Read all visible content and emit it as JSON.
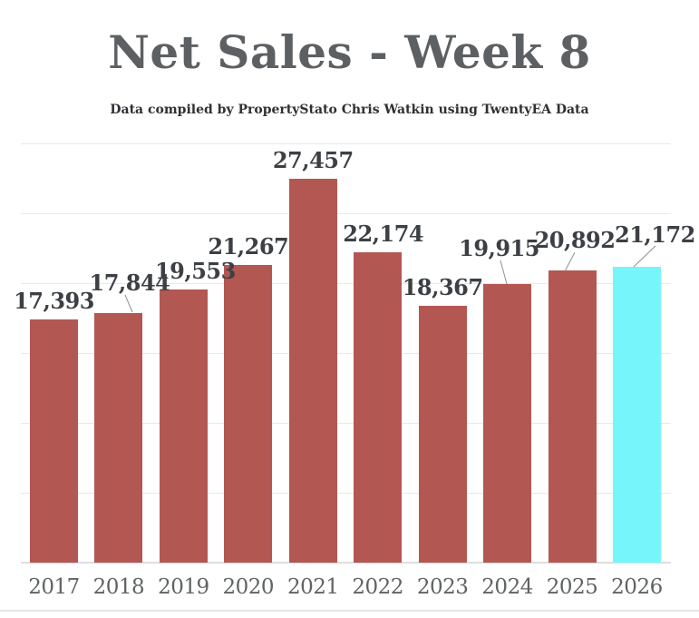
{
  "page": {
    "title": "Net Sales - Week 8",
    "subtitle": "Data compiled by PropertyStato Chris Watkin using TwentyEA Data"
  },
  "chart_data": {
    "type": "bar",
    "title": "Net Sales - Week 8",
    "subtitle": "Data compiled by PropertyStato Chris Watkin using TwentyEA Data",
    "categories": [
      "2017",
      "2018",
      "2019",
      "2020",
      "2021",
      "2022",
      "2023",
      "2024",
      "2025",
      "2026"
    ],
    "values": [
      17393,
      17844,
      19553,
      21267,
      27457,
      22174,
      18367,
      19915,
      20892,
      21172
    ],
    "value_labels": [
      "17,393",
      "17,844",
      "19,553",
      "21,267",
      "27,457",
      "22,174",
      "18,367",
      "19,915",
      "20,892",
      "21,172"
    ],
    "xlabel": "",
    "ylabel": "",
    "ylim": [
      0,
      30000
    ],
    "gridline_interval": 5000,
    "grid": true,
    "y_axis_tick_labels_visible": false,
    "legend": "none",
    "highlight_index": 9,
    "colors": {
      "bar_default": "#b35752",
      "bar_highlight": "#76f6fb",
      "title": "#5d6063",
      "subtitle": "#2e3134",
      "value_label": "#3c4044",
      "axis_label": "#606365",
      "gridline": "#e9e9e9",
      "leader_line": "#8f9092"
    }
  }
}
